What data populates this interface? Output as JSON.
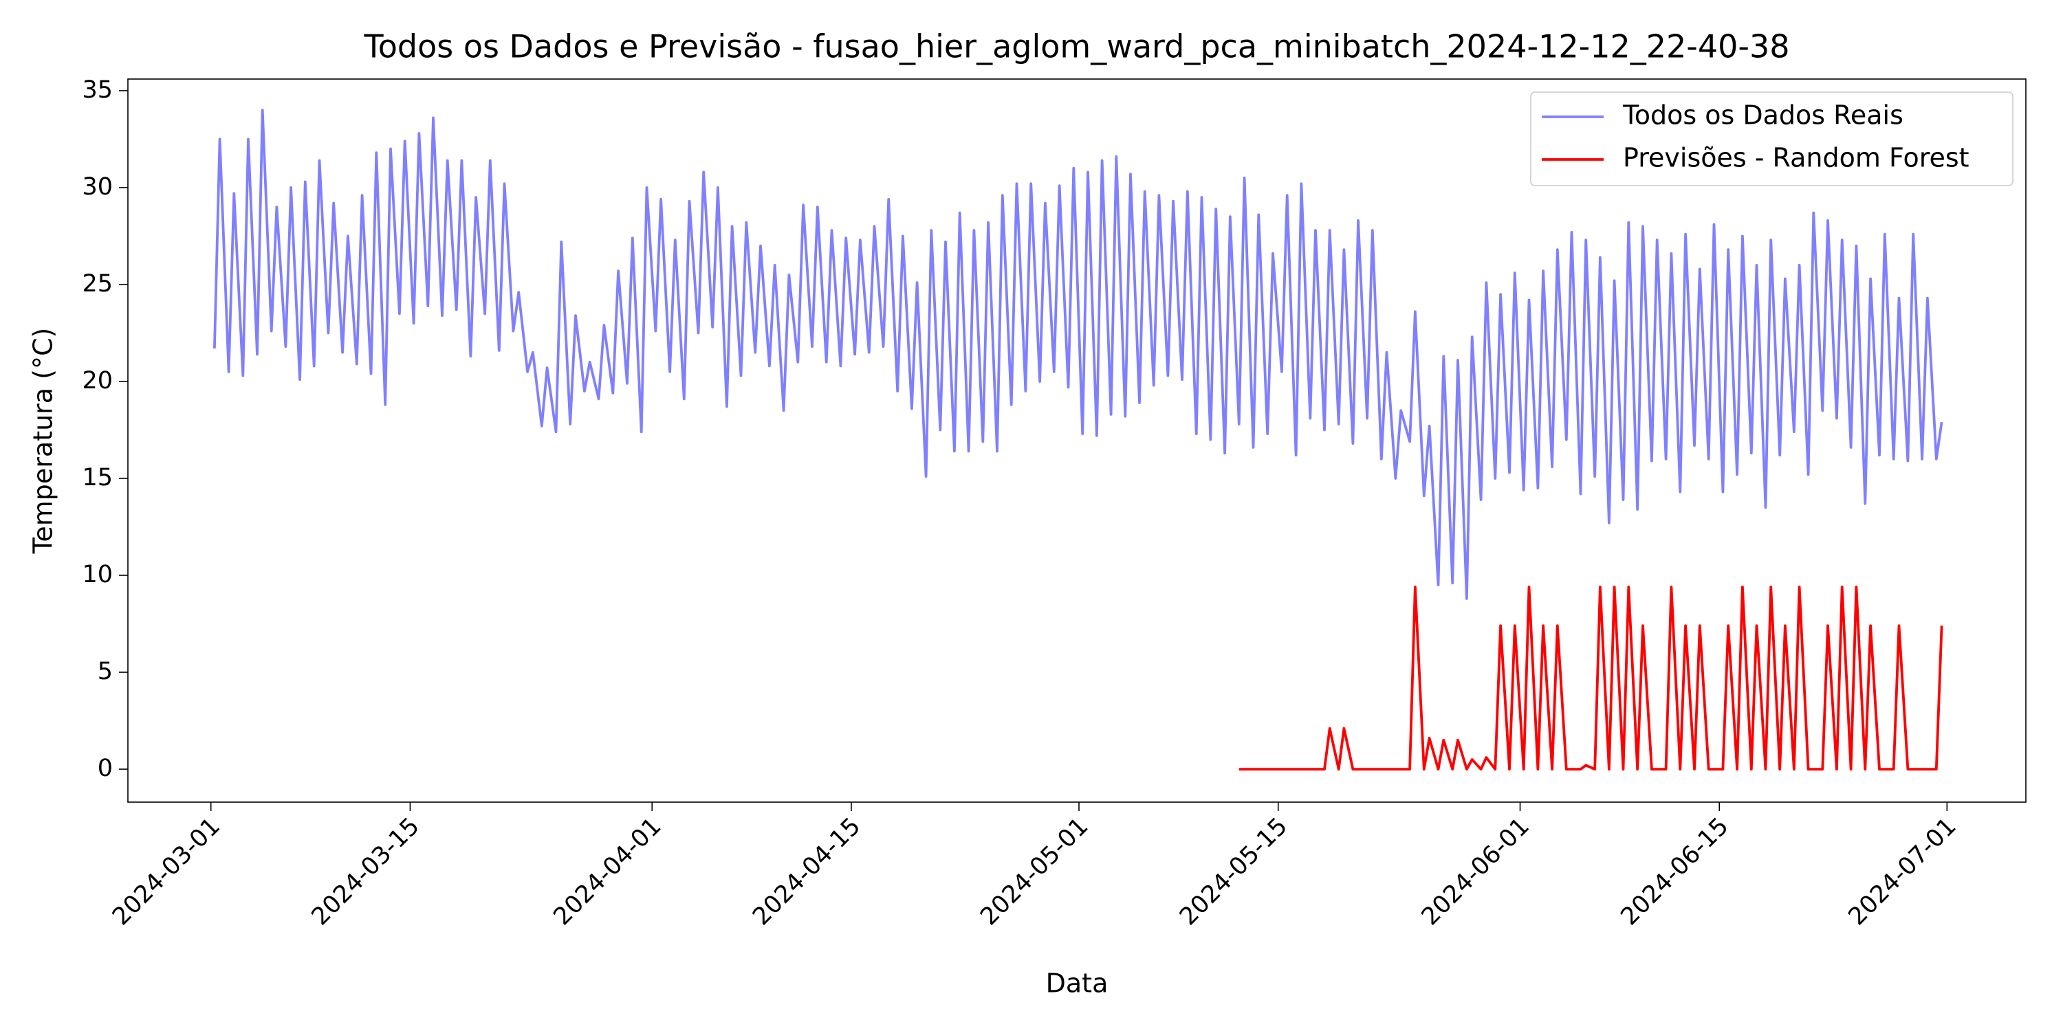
{
  "chart_data": {
    "type": "line",
    "title": "Todos os Dados e Previsão - fusao_hier_aglom_ward_pca_minibatch_2024-12-12_22-40-38",
    "x_label": "Data",
    "y_label": "Temperatura (°C)",
    "xlim": [
      "2024-02-24 04:00",
      "2024-07-06 13:00"
    ],
    "xticks": [
      "2024-03-01",
      "2024-03-15",
      "2024-04-01",
      "2024-04-15",
      "2024-05-01",
      "2024-05-15",
      "2024-06-01",
      "2024-06-15",
      "2024-07-01"
    ],
    "ylim": [
      -1.7,
      35.6
    ],
    "yticks": [
      0,
      5,
      10,
      15,
      20,
      25,
      30,
      35
    ],
    "grid": false,
    "legend": "upper right",
    "series": [
      {
        "name": "Todos os Dados Reais",
        "color": "#8080ff",
        "x": [
          "2024-03-01 06:00",
          "2024-03-01 15:00",
          "2024-03-02 06:00",
          "2024-03-02 15:00",
          "2024-03-03 06:00",
          "2024-03-03 15:00",
          "2024-03-04 06:00",
          "2024-03-04 15:00",
          "2024-03-05 06:00",
          "2024-03-05 15:00",
          "2024-03-06 06:00",
          "2024-03-06 15:00",
          "2024-03-07 06:00",
          "2024-03-07 15:00",
          "2024-03-08 06:00",
          "2024-03-08 15:00",
          "2024-03-09 06:00",
          "2024-03-09 15:00",
          "2024-03-10 06:00",
          "2024-03-10 15:00",
          "2024-03-11 06:00",
          "2024-03-11 15:00",
          "2024-03-12 06:00",
          "2024-03-12 15:00",
          "2024-03-13 06:00",
          "2024-03-13 15:00",
          "2024-03-14 06:00",
          "2024-03-14 15:00",
          "2024-03-15 06:00",
          "2024-03-15 15:00",
          "2024-03-16 06:00",
          "2024-03-16 15:00",
          "2024-03-17 06:00",
          "2024-03-17 15:00",
          "2024-03-18 06:00",
          "2024-03-18 15:00",
          "2024-03-19 06:00",
          "2024-03-19 15:00",
          "2024-03-20 06:00",
          "2024-03-20 15:00",
          "2024-03-21 06:00",
          "2024-03-21 15:00",
          "2024-03-22 06:00",
          "2024-03-22 15:00",
          "2024-03-23 06:00",
          "2024-03-23 15:00",
          "2024-03-24 06:00",
          "2024-03-24 15:00",
          "2024-03-25 06:00",
          "2024-03-25 15:00",
          "2024-03-26 06:00",
          "2024-03-26 15:00",
          "2024-03-27 06:00",
          "2024-03-27 15:00",
          "2024-03-28 06:00",
          "2024-03-28 15:00",
          "2024-03-29 06:00",
          "2024-03-29 15:00",
          "2024-03-30 06:00",
          "2024-03-30 15:00",
          "2024-03-31 06:00",
          "2024-03-31 15:00",
          "2024-04-01 06:00",
          "2024-04-01 15:00",
          "2024-04-02 06:00",
          "2024-04-02 15:00",
          "2024-04-03 06:00",
          "2024-04-03 15:00",
          "2024-04-04 06:00",
          "2024-04-04 15:00",
          "2024-04-05 06:00",
          "2024-04-05 15:00",
          "2024-04-06 06:00",
          "2024-04-06 15:00",
          "2024-04-07 06:00",
          "2024-04-07 15:00",
          "2024-04-08 06:00",
          "2024-04-08 15:00",
          "2024-04-09 06:00",
          "2024-04-09 15:00",
          "2024-04-10 06:00",
          "2024-04-10 15:00",
          "2024-04-11 06:00",
          "2024-04-11 15:00",
          "2024-04-12 06:00",
          "2024-04-12 15:00",
          "2024-04-13 06:00",
          "2024-04-13 15:00",
          "2024-04-14 06:00",
          "2024-04-14 15:00",
          "2024-04-15 06:00",
          "2024-04-15 15:00",
          "2024-04-16 06:00",
          "2024-04-16 15:00",
          "2024-04-17 06:00",
          "2024-04-17 15:00",
          "2024-04-18 06:00",
          "2024-04-18 15:00",
          "2024-04-19 06:00",
          "2024-04-19 15:00",
          "2024-04-20 06:00",
          "2024-04-20 15:00",
          "2024-04-21 06:00",
          "2024-04-21 15:00",
          "2024-04-22 06:00",
          "2024-04-22 15:00",
          "2024-04-23 06:00",
          "2024-04-23 15:00",
          "2024-04-24 06:00",
          "2024-04-24 15:00",
          "2024-04-25 06:00",
          "2024-04-25 15:00",
          "2024-04-26 06:00",
          "2024-04-26 15:00",
          "2024-04-27 06:00",
          "2024-04-27 15:00",
          "2024-04-28 06:00",
          "2024-04-28 15:00",
          "2024-04-29 06:00",
          "2024-04-29 15:00",
          "2024-04-30 06:00",
          "2024-04-30 15:00",
          "2024-05-01 06:00",
          "2024-05-01 15:00",
          "2024-05-02 06:00",
          "2024-05-02 15:00",
          "2024-05-03 06:00",
          "2024-05-03 15:00",
          "2024-05-04 06:00",
          "2024-05-04 15:00",
          "2024-05-05 06:00",
          "2024-05-05 15:00",
          "2024-05-06 06:00",
          "2024-05-06 15:00",
          "2024-05-07 06:00",
          "2024-05-07 15:00",
          "2024-05-08 06:00",
          "2024-05-08 15:00",
          "2024-05-09 06:00",
          "2024-05-09 15:00",
          "2024-05-10 06:00",
          "2024-05-10 15:00",
          "2024-05-11 06:00",
          "2024-05-11 15:00",
          "2024-05-12 06:00",
          "2024-05-12 15:00",
          "2024-05-13 06:00",
          "2024-05-13 15:00",
          "2024-05-14 06:00",
          "2024-05-14 15:00",
          "2024-05-15 06:00",
          "2024-05-15 15:00",
          "2024-05-16 06:00",
          "2024-05-16 15:00",
          "2024-05-17 06:00",
          "2024-05-17 15:00",
          "2024-05-18 06:00",
          "2024-05-18 15:00",
          "2024-05-19 06:00",
          "2024-05-19 15:00",
          "2024-05-20 06:00",
          "2024-05-20 15:00",
          "2024-05-21 06:00",
          "2024-05-21 15:00",
          "2024-05-22 06:00",
          "2024-05-22 15:00",
          "2024-05-23 06:00",
          "2024-05-23 15:00",
          "2024-05-24 06:00",
          "2024-05-24 15:00",
          "2024-05-25 06:00",
          "2024-05-25 15:00",
          "2024-05-26 06:00",
          "2024-05-26 15:00",
          "2024-05-27 06:00",
          "2024-05-27 15:00",
          "2024-05-28 06:00",
          "2024-05-28 15:00",
          "2024-05-29 06:00",
          "2024-05-29 15:00",
          "2024-05-30 06:00",
          "2024-05-30 15:00",
          "2024-05-31 06:00",
          "2024-05-31 15:00",
          "2024-06-01 06:00",
          "2024-06-01 15:00",
          "2024-06-02 06:00",
          "2024-06-02 15:00",
          "2024-06-03 06:00",
          "2024-06-03 15:00",
          "2024-06-04 06:00",
          "2024-06-04 15:00",
          "2024-06-05 06:00",
          "2024-06-05 15:00",
          "2024-06-06 06:00",
          "2024-06-06 15:00",
          "2024-06-07 06:00",
          "2024-06-07 15:00",
          "2024-06-08 06:00",
          "2024-06-08 15:00",
          "2024-06-09 06:00",
          "2024-06-09 15:00",
          "2024-06-10 06:00",
          "2024-06-10 15:00",
          "2024-06-11 06:00",
          "2024-06-11 15:00",
          "2024-06-12 06:00",
          "2024-06-12 15:00",
          "2024-06-13 06:00",
          "2024-06-13 15:00",
          "2024-06-14 06:00",
          "2024-06-14 15:00",
          "2024-06-15 06:00",
          "2024-06-15 15:00",
          "2024-06-16 06:00",
          "2024-06-16 15:00",
          "2024-06-17 06:00",
          "2024-06-17 15:00",
          "2024-06-18 06:00",
          "2024-06-18 15:00",
          "2024-06-19 06:00",
          "2024-06-19 15:00",
          "2024-06-20 06:00",
          "2024-06-20 15:00",
          "2024-06-21 06:00",
          "2024-06-21 15:00",
          "2024-06-22 06:00",
          "2024-06-22 15:00",
          "2024-06-23 06:00",
          "2024-06-23 15:00",
          "2024-06-24 06:00",
          "2024-06-24 15:00",
          "2024-06-25 06:00",
          "2024-06-25 15:00",
          "2024-06-26 06:00",
          "2024-06-26 15:00",
          "2024-06-27 06:00",
          "2024-06-27 15:00",
          "2024-06-28 06:00",
          "2024-06-28 15:00",
          "2024-06-29 06:00",
          "2024-06-29 15:00",
          "2024-06-30 06:00",
          "2024-06-30 15:00"
        ],
        "values": [
          21.7,
          32.5,
          20.5,
          29.7,
          20.3,
          32.5,
          21.4,
          34.0,
          22.6,
          29.0,
          21.8,
          30.0,
          20.1,
          30.3,
          20.8,
          31.4,
          22.5,
          29.2,
          21.5,
          27.5,
          20.9,
          29.6,
          20.4,
          31.8,
          18.8,
          32.0,
          23.5,
          32.4,
          23.0,
          32.8,
          23.9,
          33.6,
          23.4,
          31.4,
          23.7,
          31.4,
          21.3,
          29.5,
          23.5,
          31.4,
          21.6,
          30.2,
          22.6,
          24.6,
          20.5,
          21.5,
          17.7,
          20.7,
          17.4,
          27.2,
          17.8,
          23.4,
          19.5,
          21.0,
          19.1,
          22.9,
          19.4,
          25.7,
          19.9,
          27.4,
          17.4,
          30.0,
          22.6,
          29.4,
          20.5,
          27.3,
          19.1,
          29.3,
          22.5,
          30.8,
          22.8,
          30.0,
          18.7,
          28.0,
          20.3,
          28.2,
          21.5,
          27.0,
          20.8,
          26.0,
          18.5,
          25.5,
          21.0,
          29.1,
          21.8,
          29.0,
          21.0,
          27.8,
          20.8,
          27.4,
          21.4,
          27.3,
          21.5,
          28.0,
          21.8,
          29.4,
          19.5,
          27.5,
          18.6,
          25.1,
          15.1,
          27.8,
          17.5,
          27.2,
          16.4,
          28.7,
          16.4,
          27.8,
          16.9,
          28.2,
          16.4,
          29.6,
          18.8,
          30.2,
          19.5,
          30.2,
          20.0,
          29.2,
          20.5,
          30.1,
          19.7,
          31.0,
          17.3,
          30.8,
          17.2,
          31.4,
          18.3,
          31.6,
          18.2,
          30.7,
          18.9,
          29.8,
          19.8,
          29.6,
          20.3,
          29.3,
          20.1,
          29.8,
          17.3,
          29.5,
          17.0,
          28.9,
          16.3,
          28.5,
          17.8,
          30.5,
          16.6,
          28.6,
          17.3,
          26.6,
          20.5,
          29.6,
          16.2,
          30.2,
          18.1,
          27.8,
          17.5,
          27.8,
          17.8,
          26.8,
          16.8,
          28.3,
          18.1,
          27.8,
          16.0,
          21.5,
          15.0,
          18.5,
          16.9,
          23.6,
          14.1,
          17.7,
          9.5,
          21.3,
          9.6,
          21.1,
          8.8,
          22.3,
          13.9,
          25.1,
          15.0,
          24.5,
          15.3,
          25.6,
          14.4,
          24.2,
          14.5,
          25.7,
          15.6,
          26.8,
          17.0,
          27.7,
          14.2,
          27.3,
          15.1,
          26.4,
          12.7,
          25.2,
          13.9,
          28.2,
          13.4,
          28.0,
          15.9,
          27.3,
          16.0,
          26.6,
          14.3,
          27.6,
          16.7,
          25.8,
          16.0,
          28.1,
          14.3,
          26.8,
          15.2,
          27.5,
          16.3,
          26.0,
          13.5,
          27.3,
          16.2,
          25.3,
          17.4,
          26.0,
          15.2,
          28.7,
          18.5,
          28.3,
          18.1,
          27.3,
          16.6,
          27.0,
          13.7,
          25.3,
          16.2,
          27.6,
          16.0,
          24.3,
          15.9,
          27.6,
          16.0,
          24.3,
          16.0,
          17.9
        ]
      },
      {
        "name": "Previsões - Random Forest",
        "color": "#ff0000",
        "x": [
          "2024-05-12 06:00",
          "2024-05-12 15:00",
          "2024-05-13 06:00",
          "2024-05-13 15:00",
          "2024-05-14 06:00",
          "2024-05-14 15:00",
          "2024-05-15 06:00",
          "2024-05-15 15:00",
          "2024-05-16 06:00",
          "2024-05-16 15:00",
          "2024-05-17 06:00",
          "2024-05-17 15:00",
          "2024-05-18 06:00",
          "2024-05-18 15:00",
          "2024-05-19 06:00",
          "2024-05-19 15:00",
          "2024-05-20 06:00",
          "2024-05-20 15:00",
          "2024-05-21 06:00",
          "2024-05-21 15:00",
          "2024-05-22 06:00",
          "2024-05-22 15:00",
          "2024-05-23 06:00",
          "2024-05-23 15:00",
          "2024-05-24 06:00",
          "2024-05-24 15:00",
          "2024-05-25 06:00",
          "2024-05-25 15:00",
          "2024-05-26 06:00",
          "2024-05-26 15:00",
          "2024-05-27 06:00",
          "2024-05-27 15:00",
          "2024-05-28 06:00",
          "2024-05-28 15:00",
          "2024-05-29 06:00",
          "2024-05-29 15:00",
          "2024-05-30 06:00",
          "2024-05-30 15:00",
          "2024-05-31 06:00",
          "2024-05-31 15:00",
          "2024-06-01 06:00",
          "2024-06-01 15:00",
          "2024-06-02 06:00",
          "2024-06-02 15:00",
          "2024-06-03 06:00",
          "2024-06-03 15:00",
          "2024-06-04 06:00",
          "2024-06-04 15:00",
          "2024-06-05 06:00",
          "2024-06-05 15:00",
          "2024-06-06 06:00",
          "2024-06-06 15:00",
          "2024-06-07 06:00",
          "2024-06-07 15:00",
          "2024-06-08 06:00",
          "2024-06-08 15:00",
          "2024-06-09 06:00",
          "2024-06-09 15:00",
          "2024-06-10 06:00",
          "2024-06-10 15:00",
          "2024-06-11 06:00",
          "2024-06-11 15:00",
          "2024-06-12 06:00",
          "2024-06-12 15:00",
          "2024-06-13 06:00",
          "2024-06-13 15:00",
          "2024-06-14 06:00",
          "2024-06-14 15:00",
          "2024-06-15 06:00",
          "2024-06-15 15:00",
          "2024-06-16 06:00",
          "2024-06-16 15:00",
          "2024-06-17 06:00",
          "2024-06-17 15:00",
          "2024-06-18 06:00",
          "2024-06-18 15:00",
          "2024-06-19 06:00",
          "2024-06-19 15:00",
          "2024-06-20 06:00",
          "2024-06-20 15:00",
          "2024-06-21 06:00",
          "2024-06-21 15:00",
          "2024-06-22 06:00",
          "2024-06-22 15:00",
          "2024-06-23 06:00",
          "2024-06-23 15:00",
          "2024-06-24 06:00",
          "2024-06-24 15:00",
          "2024-06-25 06:00",
          "2024-06-25 15:00",
          "2024-06-26 06:00",
          "2024-06-26 15:00",
          "2024-06-27 06:00",
          "2024-06-27 15:00",
          "2024-06-28 06:00",
          "2024-06-28 15:00",
          "2024-06-29 06:00",
          "2024-06-29 15:00",
          "2024-06-30 06:00",
          "2024-06-30 15:00"
        ],
        "values": [
          0,
          0,
          0,
          0,
          0,
          0,
          0,
          0,
          0,
          0,
          0,
          0,
          0,
          2.1,
          0,
          2.1,
          0,
          0,
          0,
          0,
          0,
          0,
          0,
          0,
          0,
          9.4,
          0,
          1.6,
          0,
          1.5,
          0,
          1.5,
          0,
          0.5,
          0,
          0.6,
          0,
          7.4,
          0,
          7.4,
          0,
          9.4,
          0,
          7.4,
          0,
          7.4,
          0,
          0,
          0,
          0.2,
          0,
          9.4,
          0,
          9.4,
          0,
          9.4,
          0,
          7.4,
          0,
          0,
          0,
          9.4,
          0,
          7.4,
          0,
          7.4,
          0,
          0,
          0,
          7.4,
          0,
          9.4,
          0,
          7.4,
          0,
          9.4,
          0,
          7.4,
          0,
          9.4,
          0,
          0,
          0,
          7.4,
          0,
          9.4,
          0,
          9.4,
          0,
          7.4,
          0,
          0,
          0,
          7.4,
          0,
          0,
          0,
          0,
          0,
          7.4
        ]
      }
    ]
  }
}
